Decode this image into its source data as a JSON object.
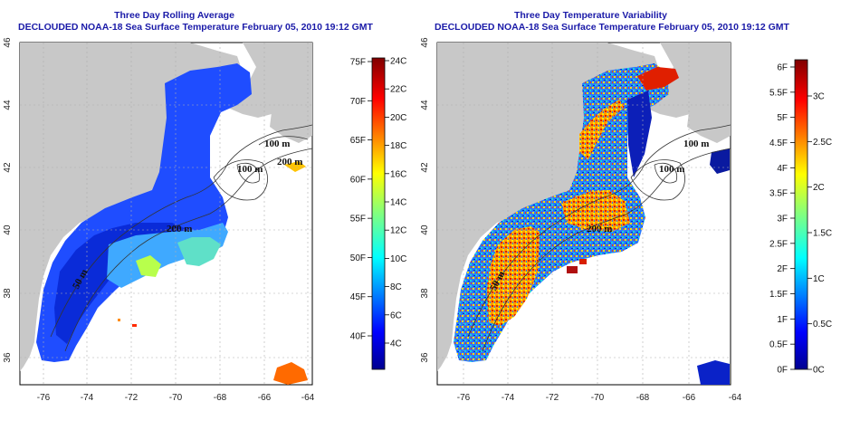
{
  "panels": [
    {
      "title_line1": "Three Day Rolling Average",
      "title_line2": "DECLOUDED NOAA-18 Sea Surface Temperature February 05, 2010 19:12 GMT",
      "colorbar_f": [
        "75F",
        "70F",
        "65F",
        "60F",
        "55F",
        "50F",
        "45F",
        "40F"
      ],
      "colorbar_c": [
        "24C",
        "22C",
        "20C",
        "18C",
        "16C",
        "14C",
        "12C",
        "10C",
        "8C",
        "6C",
        "4C"
      ]
    },
    {
      "title_line1": "Three Day Temperature Variability",
      "title_line2": "DECLOUDED NOAA-18 Sea Surface Temperature February 05, 2010 19:12 GMT",
      "colorbar_f": [
        "6F",
        "5.5F",
        "5F",
        "4.5F",
        "4F",
        "3.5F",
        "3F",
        "2.5F",
        "2F",
        "1.5F",
        "1F",
        "0.5F",
        "0F"
      ],
      "colorbar_c": [
        "3C",
        "2.5C",
        "2C",
        "1.5C",
        "1C",
        "0.5C",
        "0C"
      ]
    }
  ],
  "x_ticks": [
    "-76",
    "-74",
    "-72",
    "-70",
    "-68",
    "-66",
    "-64"
  ],
  "y_ticks": [
    "36",
    "38",
    "40",
    "42",
    "44",
    "46"
  ],
  "contour_labels": [
    "100 m",
    "100 m",
    "200 m",
    "200 m",
    "50 m"
  ]
}
